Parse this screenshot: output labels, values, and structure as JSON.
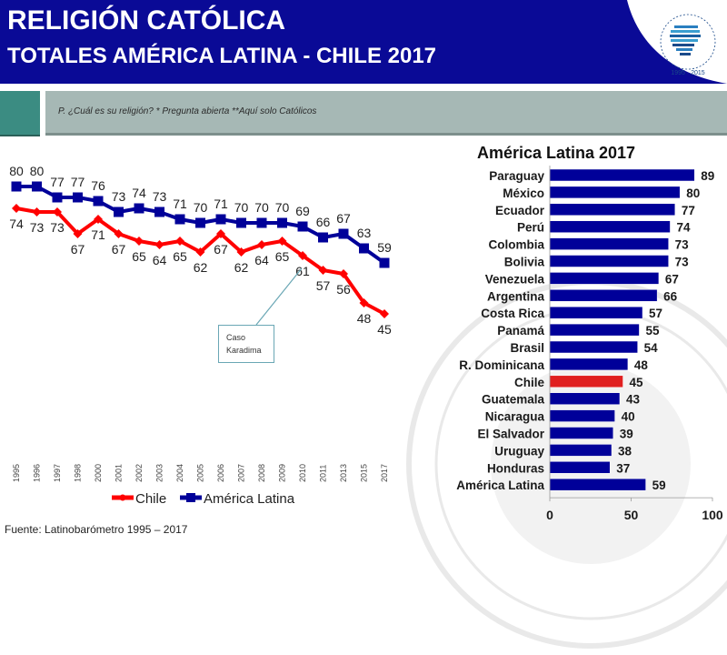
{
  "header": {
    "title": "RELIGIÓN CATÓLICA",
    "subtitle": "TOTALES AMÉRICA LATINA - CHILE 2017",
    "logo_text": "LATINOBARÓMETRO",
    "logo_years": "1995 · 2015"
  },
  "question": "P. ¿Cuál es su religión? * Pregunta abierta  **Aquí solo Católicos",
  "source": "Fuente: Latinobarómetro 1995 – 2017",
  "colors": {
    "header_blue": "#0a0a96",
    "series_blue": "#000099",
    "series_red": "#ff0000",
    "chile_bar": "#e02020",
    "teal": "#3b8c82",
    "band_gray": "#a6b8b5"
  },
  "chart_data": [
    {
      "type": "line",
      "title": "",
      "xlabel": "",
      "ylabel": "",
      "x": [
        "1995",
        "1996",
        "1997",
        "1998",
        "2000",
        "2001",
        "2002",
        "2003",
        "2004",
        "2005",
        "2006",
        "2007",
        "2008",
        "2009",
        "2010",
        "2011",
        "2013",
        "2015",
        "2017"
      ],
      "series": [
        {
          "name": "América Latina",
          "color": "#000099",
          "marker": "square",
          "values": [
            80,
            80,
            77,
            77,
            76,
            73,
            74,
            73,
            71,
            70,
            71,
            70,
            70,
            70,
            69,
            66,
            67,
            63,
            59
          ]
        },
        {
          "name": "Chile",
          "color": "#ff0000",
          "marker": "diamond",
          "values": [
            74,
            73,
            73,
            67,
            71,
            67,
            65,
            64,
            65,
            62,
            67,
            62,
            64,
            65,
            61,
            57,
            56,
            48,
            45
          ]
        }
      ],
      "legend": {
        "position": "bottom",
        "entries": [
          "Chile",
          "América Latina"
        ]
      },
      "annotation": {
        "text_line1": "Caso",
        "text_line2": "Karadima",
        "x": "2010"
      },
      "ylim": [
        40,
        85
      ],
      "grid": false
    },
    {
      "type": "bar",
      "orientation": "horizontal",
      "title": "América Latina 2017",
      "categories": [
        "Paraguay",
        "México",
        "Ecuador",
        "Perú",
        "Colombia",
        "Bolivia",
        "Venezuela",
        "Argentina",
        "Costa Rica",
        "Panamá",
        "Brasil",
        "R. Dominicana",
        "Chile",
        "Guatemala",
        "Nicaragua",
        "El Salvador",
        "Uruguay",
        "Honduras",
        "América Latina"
      ],
      "values": [
        89,
        80,
        77,
        74,
        73,
        73,
        67,
        66,
        57,
        55,
        54,
        48,
        45,
        43,
        40,
        39,
        38,
        37,
        59
      ],
      "highlight": "Chile",
      "xlim": [
        0,
        100
      ],
      "xticks": [
        "0",
        "50",
        "100"
      ],
      "grid": false
    }
  ]
}
